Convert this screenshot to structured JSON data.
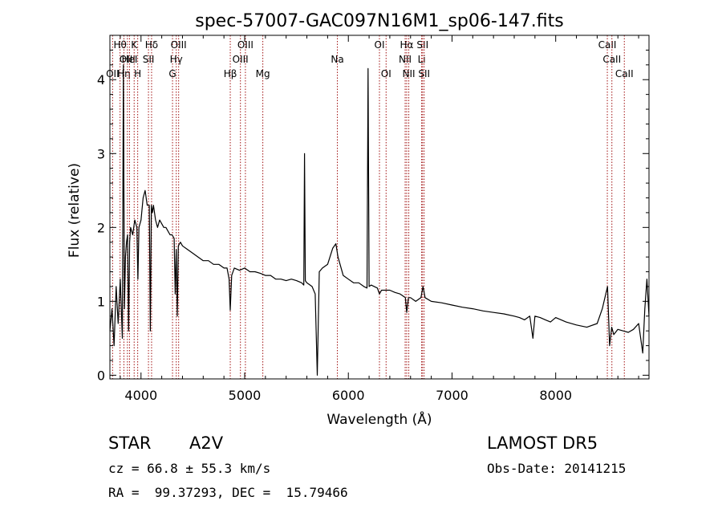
{
  "chart_data": {
    "type": "line",
    "title": "spec-57007-GAC097N16M1_sp06-147.fits",
    "xlabel": "Wavelength (Å)",
    "ylabel": "Flux (relative)",
    "xlim": [
      3700,
      8900
    ],
    "ylim": [
      -0.05,
      4.6
    ],
    "x_ticks": [
      4000,
      5000,
      6000,
      7000,
      8000
    ],
    "y_ticks": [
      0,
      1,
      2,
      3,
      4
    ],
    "line_color": "#000000",
    "marker_color": "#a01010",
    "grid": false,
    "legend": "none",
    "series": [
      {
        "x": [
          3700,
          3720,
          3740,
          3760,
          3780,
          3800,
          3820,
          3830,
          3840,
          3850,
          3860,
          3870,
          3880,
          3890,
          3900,
          3920,
          3940,
          3960,
          3970,
          3980,
          4000,
          4020,
          4040,
          4060,
          4080,
          4090,
          4100,
          4110,
          4120,
          4140,
          4160,
          4180,
          4200,
          4220,
          4240,
          4260,
          4280,
          4300,
          4320,
          4330,
          4340,
          4350,
          4360,
          4380,
          4400,
          4450,
          4500,
          4550,
          4600,
          4650,
          4700,
          4750,
          4800,
          4830,
          4850,
          4861,
          4875,
          4900,
          4950,
          5000,
          5050,
          5100,
          5150,
          5200,
          5250,
          5300,
          5350,
          5400,
          5450,
          5500,
          5550,
          5570,
          5577,
          5585,
          5600,
          5650,
          5680,
          5700,
          5720,
          5750,
          5800,
          5850,
          5880,
          5900,
          5950,
          6000,
          6050,
          6100,
          6150,
          6180,
          6190,
          6200,
          6220,
          6250,
          6280,
          6300,
          6320,
          6350,
          6400,
          6450,
          6500,
          6550,
          6563,
          6580,
          6600,
          6650,
          6700,
          6720,
          6740,
          6800,
          6900,
          7000,
          7100,
          7200,
          7300,
          7400,
          7500,
          7600,
          7650,
          7700,
          7750,
          7780,
          7800,
          7850,
          7900,
          7950,
          8000,
          8100,
          8200,
          8300,
          8400,
          8450,
          8500,
          8520,
          8540,
          8560,
          8600,
          8650,
          8700,
          8750,
          8800,
          8840,
          8860,
          8880,
          8900
        ],
        "y": [
          0.6,
          0.9,
          0.4,
          1.2,
          0.7,
          1.3,
          0.5,
          4.2,
          0.9,
          1.6,
          1.8,
          1.9,
          0.6,
          1.8,
          2.0,
          1.9,
          2.1,
          2.0,
          1.3,
          2.0,
          2.1,
          2.4,
          2.5,
          2.3,
          2.3,
          0.6,
          2.3,
          2.2,
          2.3,
          2.1,
          2.0,
          2.1,
          2.05,
          2.0,
          2.0,
          1.95,
          1.9,
          1.9,
          1.85,
          1.1,
          1.7,
          0.8,
          1.75,
          1.8,
          1.75,
          1.7,
          1.65,
          1.6,
          1.55,
          1.55,
          1.5,
          1.5,
          1.45,
          1.45,
          1.3,
          0.88,
          1.35,
          1.45,
          1.42,
          1.45,
          1.4,
          1.4,
          1.38,
          1.35,
          1.35,
          1.3,
          1.3,
          1.28,
          1.3,
          1.28,
          1.25,
          1.22,
          3.0,
          1.28,
          1.25,
          1.2,
          1.1,
          0.0,
          1.4,
          1.45,
          1.5,
          1.72,
          1.78,
          1.6,
          1.35,
          1.3,
          1.25,
          1.25,
          1.2,
          1.18,
          4.15,
          1.2,
          1.22,
          1.2,
          1.18,
          1.1,
          1.15,
          1.15,
          1.15,
          1.12,
          1.1,
          1.05,
          0.85,
          1.05,
          1.05,
          1.0,
          1.05,
          1.2,
          1.05,
          1.0,
          0.98,
          0.95,
          0.92,
          0.9,
          0.87,
          0.85,
          0.83,
          0.8,
          0.78,
          0.75,
          0.8,
          0.5,
          0.8,
          0.78,
          0.75,
          0.72,
          0.78,
          0.72,
          0.68,
          0.65,
          0.7,
          0.9,
          1.2,
          0.4,
          0.65,
          0.55,
          0.62,
          0.6,
          0.58,
          0.62,
          0.7,
          0.3,
          0.9,
          1.3,
          0.8
        ]
      }
    ],
    "line_markers": [
      {
        "x": 3798,
        "label": "Hθ",
        "row": 0
      },
      {
        "x": 3835,
        "label": "Hη",
        "row": 2
      },
      {
        "x": 3869,
        "label": "OIII",
        "row": 1
      },
      {
        "x": 3726,
        "label": "OII",
        "row": 2
      },
      {
        "x": 3889,
        "label": "HeI",
        "row": 1
      },
      {
        "x": 3934,
        "label": "K",
        "row": 0
      },
      {
        "x": 3968,
        "label": "H",
        "row": 2
      },
      {
        "x": 4072,
        "label": "SII",
        "row": 1
      },
      {
        "x": 4102,
        "label": "Hδ",
        "row": 0
      },
      {
        "x": 4304,
        "label": "G",
        "row": 2
      },
      {
        "x": 4340,
        "label": "Hγ",
        "row": 1
      },
      {
        "x": 4363,
        "label": "OIII",
        "row": 0
      },
      {
        "x": 4861,
        "label": "Hβ",
        "row": 2
      },
      {
        "x": 4959,
        "label": "OIII",
        "row": 1
      },
      {
        "x": 5007,
        "label": "OIII",
        "row": 0
      },
      {
        "x": 5175,
        "label": "Mg",
        "row": 2
      },
      {
        "x": 5894,
        "label": "Na",
        "row": 1
      },
      {
        "x": 6300,
        "label": "OI",
        "row": 0
      },
      {
        "x": 6364,
        "label": "OI",
        "row": 2
      },
      {
        "x": 6548,
        "label": "NII",
        "row": 1
      },
      {
        "x": 6563,
        "label": "Hα",
        "row": 0
      },
      {
        "x": 6583,
        "label": "NII",
        "row": 2
      },
      {
        "x": 6707,
        "label": "Li",
        "row": 1
      },
      {
        "x": 6716,
        "label": "SII",
        "row": 0
      },
      {
        "x": 6731,
        "label": "SII",
        "row": 2
      },
      {
        "x": 8498,
        "label": "CaII",
        "row": 0
      },
      {
        "x": 8542,
        "label": "CaII",
        "row": 1
      },
      {
        "x": 8662,
        "label": "CaII",
        "row": 2
      }
    ]
  },
  "info": {
    "class": "STAR",
    "subclass": "A2V",
    "survey": "LAMOST DR5",
    "redshift": "cz = 66.8 ± 55.3 km/s",
    "obs_date": "Obs-Date: 20141215",
    "coords": "RA =  99.37293, DEC =  15.79466"
  }
}
